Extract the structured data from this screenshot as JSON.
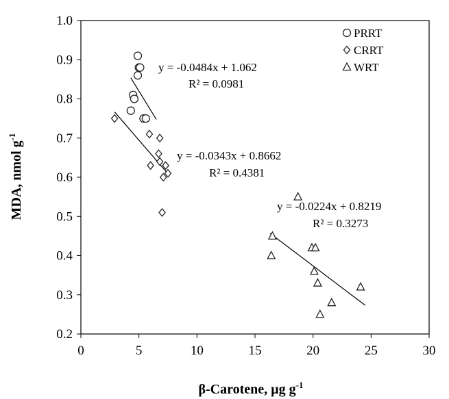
{
  "chart_data": {
    "type": "scatter",
    "title": "",
    "xlabel": "β-Carotene, µg g",
    "xlabel_sup": "-1",
    "ylabel": "MDA, nmol g",
    "ylabel_sup": "-1",
    "xlim": [
      0,
      30
    ],
    "ylim": [
      0.2,
      1.0
    ],
    "xticks": [
      0,
      5,
      10,
      15,
      20,
      25,
      30
    ],
    "yticks": [
      0.2,
      0.3,
      0.4,
      0.5,
      0.6,
      0.7,
      0.8,
      0.9,
      1.0
    ],
    "xtick_labels": [
      "0",
      "5",
      "10",
      "15",
      "20",
      "25",
      "30"
    ],
    "ytick_labels": [
      "0.2",
      "0.3",
      "0.4",
      "0.5",
      "0.6",
      "0.7",
      "0.8",
      "0.9",
      "1.0"
    ],
    "grid": false,
    "legend_position": "top-right",
    "series": [
      {
        "name": "PRRT",
        "marker": "circle",
        "points": [
          [
            4.9,
            0.91
          ],
          [
            5.0,
            0.88
          ],
          [
            5.1,
            0.88
          ],
          [
            4.9,
            0.86
          ],
          [
            4.5,
            0.81
          ],
          [
            4.6,
            0.8
          ],
          [
            4.3,
            0.77
          ],
          [
            5.4,
            0.75
          ],
          [
            5.6,
            0.75
          ]
        ],
        "trendline": {
          "x": [
            4.3,
            6.5
          ],
          "equation": "y = -0.0484x + 1.062",
          "r2": "R² = 0.0981",
          "slope": -0.0484,
          "intercept": 1.062
        }
      },
      {
        "name": "CRRT",
        "marker": "diamond",
        "points": [
          [
            2.9,
            0.75
          ],
          [
            5.9,
            0.71
          ],
          [
            6.8,
            0.7
          ],
          [
            6.7,
            0.66
          ],
          [
            6.8,
            0.64
          ],
          [
            6.0,
            0.63
          ],
          [
            7.3,
            0.63
          ],
          [
            7.5,
            0.61
          ],
          [
            7.1,
            0.6
          ],
          [
            7.0,
            0.51
          ]
        ],
        "trendline": {
          "x": [
            2.9,
            7.6
          ],
          "equation": "y = -0.0343x + 0.8662",
          "r2": "R² = 0.4381",
          "slope": -0.0343,
          "intercept": 0.8662
        }
      },
      {
        "name": "WRT",
        "marker": "triangle",
        "points": [
          [
            18.7,
            0.55
          ],
          [
            16.5,
            0.45
          ],
          [
            19.9,
            0.42
          ],
          [
            20.2,
            0.42
          ],
          [
            16.4,
            0.4
          ],
          [
            20.1,
            0.36
          ],
          [
            20.4,
            0.33
          ],
          [
            24.1,
            0.32
          ],
          [
            21.6,
            0.28
          ],
          [
            20.6,
            0.25
          ]
        ],
        "trendline": {
          "x": [
            16.3,
            24.5
          ],
          "equation": "y = -0.0224x + 0.8219",
          "r2": "R² = 0.3273",
          "slope": -0.0224,
          "intercept": 0.8219
        }
      }
    ]
  }
}
